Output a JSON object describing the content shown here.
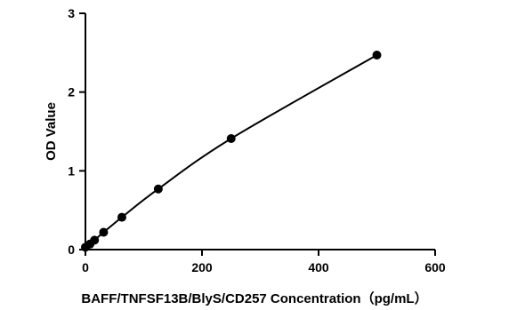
{
  "chart_data": {
    "type": "scatter",
    "title": "",
    "xlabel": "BAFF/TNFSF13B/BlyS/CD257 Concentration（pg/mL）",
    "ylabel": "OD Value",
    "xlim": [
      0,
      600
    ],
    "ylim": [
      0,
      3
    ],
    "x_ticks": [
      0,
      200,
      400,
      600
    ],
    "y_ticks": [
      0,
      1,
      2,
      3
    ],
    "grid": false,
    "legend": "none",
    "fit_curve": true,
    "series": [
      {
        "x": [
          0,
          7.8,
          15.6,
          31.2,
          62.5,
          125,
          250,
          500
        ],
        "y": [
          0.03,
          0.07,
          0.12,
          0.22,
          0.41,
          0.77,
          1.41,
          2.47
        ]
      }
    ],
    "colors": {
      "marker": "#000000",
      "line": "#000000",
      "axis": "#000000"
    }
  }
}
